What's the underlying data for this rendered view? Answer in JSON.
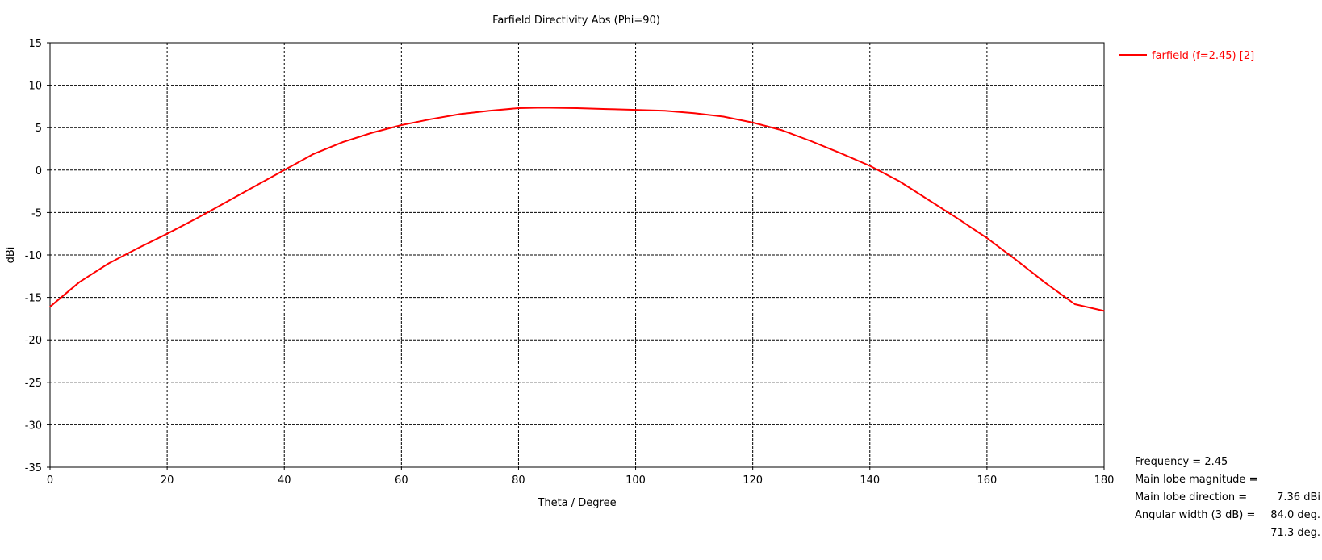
{
  "chart_data": {
    "type": "line",
    "title": "Farfield Directivity Abs (Phi=90)",
    "xlabel": "Theta / Degree",
    "ylabel": "dBi",
    "xlim": [
      0,
      180
    ],
    "ylim": [
      -35,
      15
    ],
    "xticks": [
      0,
      20,
      40,
      60,
      80,
      100,
      120,
      140,
      160,
      180
    ],
    "yticks": [
      15,
      10,
      5,
      0,
      -5,
      -10,
      -15,
      -20,
      -25,
      -30,
      -35
    ],
    "grid": true,
    "legend_position": "top-right",
    "series": [
      {
        "name": "farfield (f=2.45) [2]",
        "color": "#ff0000",
        "x": [
          0,
          5,
          10,
          15,
          20,
          25,
          30,
          35,
          40,
          45,
          50,
          55,
          60,
          65,
          70,
          75,
          80,
          84,
          90,
          95,
          100,
          105,
          110,
          115,
          120,
          125,
          130,
          135,
          140,
          145,
          150,
          155,
          160,
          165,
          170,
          175,
          180
        ],
        "y": [
          -16.1,
          -13.2,
          -11.0,
          -9.2,
          -7.5,
          -5.7,
          -3.8,
          -1.9,
          0.0,
          1.9,
          3.3,
          4.4,
          5.3,
          6.0,
          6.6,
          7.0,
          7.3,
          7.36,
          7.3,
          7.2,
          7.1,
          7.0,
          6.7,
          6.3,
          5.6,
          4.7,
          3.4,
          2.0,
          0.5,
          -1.3,
          -3.5,
          -5.7,
          -8.0,
          -10.6,
          -13.3,
          -15.8,
          -16.6
        ]
      }
    ]
  },
  "info": {
    "frequency_label": "Frequency = 2.45",
    "magnitude_label": "Main lobe magnitude =",
    "magnitude_value": "7.36 dBi",
    "direction_label": "Main lobe direction =",
    "direction_value": "84.0 deg.",
    "width_label": "Angular width (3 dB) =",
    "width_value": "71.3 deg."
  }
}
